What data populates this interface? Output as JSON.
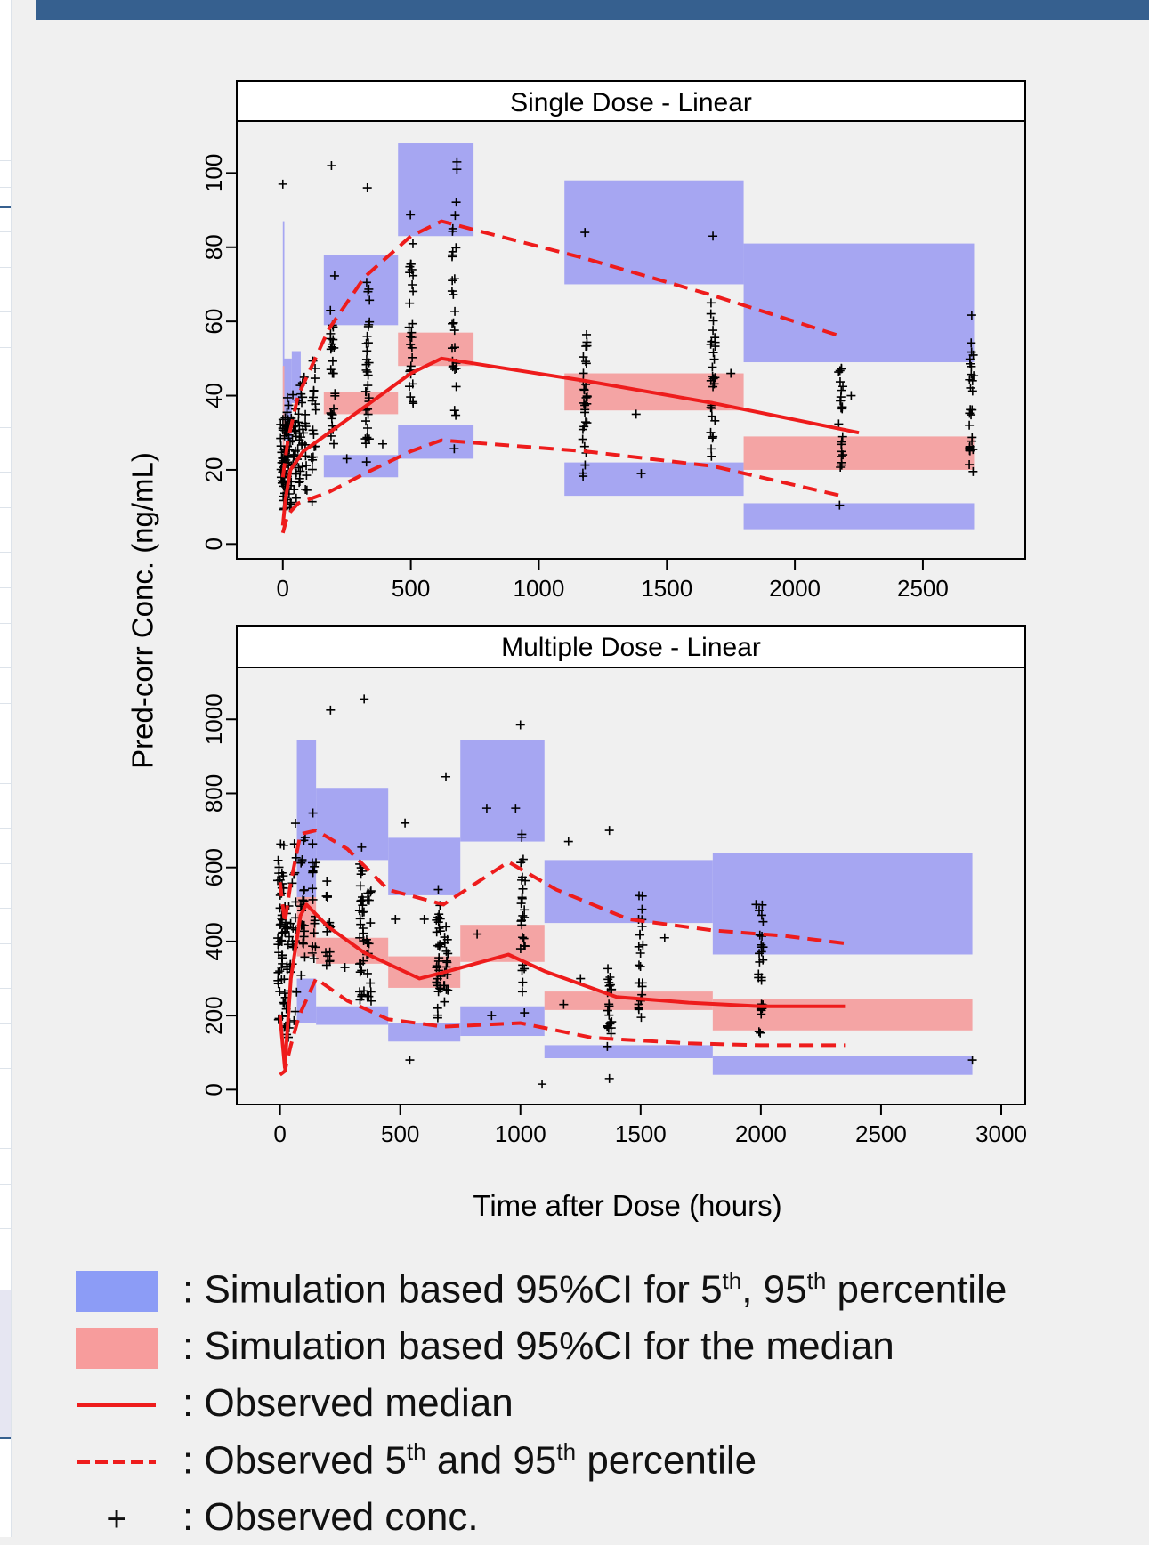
{
  "colors": {
    "pi_band": "#a6a6f2",
    "median_band": "#f4a4a4",
    "observed_line": "#ee1c1c",
    "points": "#000000",
    "legend_pi": "#8c9cf6",
    "legend_median": "#f79c9c",
    "header_bar": "#36608f"
  },
  "chart_data": {
    "type": "scatter",
    "ylabel": "Pred-corr Conc. (ng/mL)",
    "xlabel": "Time after Dose (hours)",
    "panels": [
      {
        "title": "Single Dose - Linear",
        "xlim": [
          -180,
          2900
        ],
        "ylim": [
          -4,
          114
        ],
        "xticks": [
          0,
          500,
          1000,
          1500,
          2000,
          2500
        ],
        "xtick_labels": [
          "0",
          "500",
          "1000",
          "1500",
          "2000",
          "2500"
        ],
        "yticks": [
          0,
          20,
          40,
          60,
          80,
          100
        ],
        "ytick_labels": [
          "0",
          "20",
          "40",
          "60",
          "80",
          "100"
        ],
        "pi_bands": [
          {
            "x": [
              0,
              6
            ],
            "y": [
              20,
              87
            ]
          },
          {
            "x": [
              6,
              35
            ],
            "y": [
              28,
              50
            ]
          },
          {
            "x": [
              35,
              70
            ],
            "y": [
              38,
              52
            ]
          },
          {
            "x": [
              160,
              450
            ],
            "y": [
              59,
              78
            ]
          },
          {
            "x": [
              450,
              745
            ],
            "y": [
              83,
              108
            ]
          },
          {
            "x": [
              1100,
              1800
            ],
            "y": [
              70,
              98
            ]
          },
          {
            "x": [
              1800,
              2700
            ],
            "y": [
              49,
              81
            ]
          },
          {
            "x": [
              160,
              450
            ],
            "y": [
              18,
              24
            ]
          },
          {
            "x": [
              450,
              745
            ],
            "y": [
              23,
              32
            ]
          },
          {
            "x": [
              1100,
              1800
            ],
            "y": [
              13,
              22
            ]
          },
          {
            "x": [
              1800,
              2700
            ],
            "y": [
              4,
              11
            ]
          }
        ],
        "median_bands": [
          {
            "x": [
              0,
              6
            ],
            "y": [
              10,
              48
            ]
          },
          {
            "x": [
              160,
              450
            ],
            "y": [
              35,
              41
            ]
          },
          {
            "x": [
              450,
              745
            ],
            "y": [
              48,
              57
            ]
          },
          {
            "x": [
              1100,
              1800
            ],
            "y": [
              36,
              46
            ]
          },
          {
            "x": [
              1800,
              2700
            ],
            "y": [
              20,
              29
            ]
          }
        ],
        "observed_median": [
          [
            0,
            5
          ],
          [
            10,
            12
          ],
          [
            30,
            20
          ],
          [
            80,
            25
          ],
          [
            180,
            30
          ],
          [
            320,
            37
          ],
          [
            500,
            46
          ],
          [
            620,
            50
          ],
          [
            1180,
            44
          ],
          [
            1680,
            38
          ],
          [
            2250,
            30
          ]
        ],
        "observed_p5": [
          [
            0,
            3
          ],
          [
            20,
            8
          ],
          [
            60,
            11
          ],
          [
            180,
            14
          ],
          [
            320,
            19
          ],
          [
            500,
            25
          ],
          [
            620,
            28
          ],
          [
            1180,
            25
          ],
          [
            1680,
            21
          ],
          [
            2180,
            13
          ]
        ],
        "observed_p95": [
          [
            0,
            18
          ],
          [
            20,
            28
          ],
          [
            60,
            40
          ],
          [
            180,
            58
          ],
          [
            320,
            72
          ],
          [
            500,
            83
          ],
          [
            620,
            87
          ],
          [
            1180,
            77
          ],
          [
            1680,
            67
          ],
          [
            2180,
            56
          ]
        ],
        "obs_columns": [
          {
            "x": 0,
            "n": 28,
            "lo": 2,
            "hi": 40
          },
          {
            "x": 12,
            "n": 22,
            "lo": 4,
            "hi": 46
          },
          {
            "x": 25,
            "n": 22,
            "lo": 5,
            "hi": 43
          },
          {
            "x": 45,
            "n": 20,
            "lo": 7,
            "hi": 45
          },
          {
            "x": 65,
            "n": 18,
            "lo": 8,
            "hi": 47
          },
          {
            "x": 85,
            "n": 16,
            "lo": 9,
            "hi": 50
          },
          {
            "x": 120,
            "n": 18,
            "lo": 10,
            "hi": 58
          },
          {
            "x": 195,
            "n": 26,
            "lo": 13,
            "hi": 78
          },
          {
            "x": 330,
            "n": 32,
            "lo": 11,
            "hi": 78
          },
          {
            "x": 500,
            "n": 28,
            "lo": 21,
            "hi": 96
          },
          {
            "x": 670,
            "n": 28,
            "lo": 20,
            "hi": 102
          },
          {
            "x": 1180,
            "n": 30,
            "lo": 16,
            "hi": 64
          },
          {
            "x": 1680,
            "n": 28,
            "lo": 17,
            "hi": 70
          },
          {
            "x": 2180,
            "n": 24,
            "lo": 9,
            "hi": 59
          },
          {
            "x": 2690,
            "n": 28,
            "lo": 6,
            "hi": 67
          }
        ],
        "obs_extra": [
          [
            0,
            97
          ],
          [
            190,
            102
          ],
          [
            330,
            96
          ],
          [
            680,
            103
          ],
          [
            680,
            101
          ],
          [
            1180,
            84
          ],
          [
            1680,
            83
          ],
          [
            1380,
            35
          ],
          [
            1400,
            19
          ],
          [
            2220,
            40
          ],
          [
            1750,
            46
          ],
          [
            250,
            23
          ],
          [
            390,
            27
          ]
        ]
      },
      {
        "title": "Multiple Dose - Linear",
        "xlim": [
          -180,
          3100
        ],
        "ylim": [
          -40,
          1140
        ],
        "xticks": [
          0,
          500,
          1000,
          1500,
          2000,
          2500,
          3000
        ],
        "xtick_labels": [
          "0",
          "500",
          "1000",
          "1500",
          "2000",
          "2500",
          "3000"
        ],
        "yticks": [
          0,
          200,
          400,
          600,
          800,
          1000
        ],
        "ytick_labels": [
          "0",
          "200",
          "400",
          "600",
          "800",
          "1000"
        ],
        "pi_bands": [
          {
            "x": [
              70,
              150
            ],
            "y": [
              520,
              945
            ]
          },
          {
            "x": [
              150,
              450
            ],
            "y": [
              620,
              815
            ]
          },
          {
            "x": [
              450,
              750
            ],
            "y": [
              525,
              680
            ]
          },
          {
            "x": [
              750,
              1100
            ],
            "y": [
              670,
              945
            ]
          },
          {
            "x": [
              1100,
              1800
            ],
            "y": [
              450,
              620
            ]
          },
          {
            "x": [
              1800,
              2880
            ],
            "y": [
              365,
              640
            ]
          },
          {
            "x": [
              70,
              150
            ],
            "y": [
              180,
              300
            ]
          },
          {
            "x": [
              150,
              450
            ],
            "y": [
              175,
              225
            ]
          },
          {
            "x": [
              450,
              750
            ],
            "y": [
              130,
              180
            ]
          },
          {
            "x": [
              750,
              1100
            ],
            "y": [
              145,
              225
            ]
          },
          {
            "x": [
              1100,
              1800
            ],
            "y": [
              85,
              120
            ]
          },
          {
            "x": [
              1800,
              2880
            ],
            "y": [
              40,
              90
            ]
          }
        ],
        "median_bands": [
          {
            "x": [
              70,
              150
            ],
            "y": [
              360,
              520
            ]
          },
          {
            "x": [
              150,
              450
            ],
            "y": [
              340,
              410
            ]
          },
          {
            "x": [
              450,
              750
            ],
            "y": [
              275,
              360
            ]
          },
          {
            "x": [
              750,
              1100
            ],
            "y": [
              345,
              445
            ]
          },
          {
            "x": [
              1100,
              1800
            ],
            "y": [
              215,
              265
            ]
          },
          {
            "x": [
              1800,
              2880
            ],
            "y": [
              160,
              245
            ]
          }
        ],
        "observed_median": [
          [
            0,
            200
          ],
          [
            20,
            60
          ],
          [
            45,
            300
          ],
          [
            85,
            470
          ],
          [
            110,
            500
          ],
          [
            200,
            440
          ],
          [
            350,
            370
          ],
          [
            580,
            300
          ],
          [
            700,
            320
          ],
          [
            950,
            365
          ],
          [
            1100,
            320
          ],
          [
            1400,
            250
          ],
          [
            1700,
            235
          ],
          [
            2000,
            225
          ],
          [
            2350,
            225
          ]
        ],
        "observed_p5": [
          [
            0,
            40
          ],
          [
            20,
            50
          ],
          [
            45,
            120
          ],
          [
            80,
            200
          ],
          [
            150,
            300
          ],
          [
            280,
            240
          ],
          [
            450,
            190
          ],
          [
            680,
            170
          ],
          [
            1000,
            180
          ],
          [
            1300,
            140
          ],
          [
            1700,
            125
          ],
          [
            2000,
            120
          ],
          [
            2350,
            120
          ]
        ],
        "observed_p95": [
          [
            0,
            560
          ],
          [
            20,
            450
          ],
          [
            45,
            560
          ],
          [
            85,
            690
          ],
          [
            150,
            700
          ],
          [
            280,
            650
          ],
          [
            450,
            540
          ],
          [
            680,
            500
          ],
          [
            950,
            615
          ],
          [
            1150,
            540
          ],
          [
            1450,
            460
          ],
          [
            1800,
            430
          ],
          [
            2100,
            415
          ],
          [
            2350,
            395
          ]
        ],
        "obs_columns": [
          {
            "x": 0,
            "n": 30,
            "lo": 25,
            "hi": 820
          },
          {
            "x": 15,
            "n": 26,
            "lo": 40,
            "hi": 760
          },
          {
            "x": 35,
            "n": 20,
            "lo": 60,
            "hi": 600
          },
          {
            "x": 60,
            "n": 18,
            "lo": 120,
            "hi": 780
          },
          {
            "x": 95,
            "n": 22,
            "lo": 240,
            "hi": 720
          },
          {
            "x": 140,
            "n": 18,
            "lo": 250,
            "hi": 800
          },
          {
            "x": 200,
            "n": 16,
            "lo": 270,
            "hi": 620
          },
          {
            "x": 340,
            "n": 30,
            "lo": 130,
            "hi": 730
          },
          {
            "x": 370,
            "n": 18,
            "lo": 150,
            "hi": 640
          },
          {
            "x": 660,
            "n": 30,
            "lo": 80,
            "hi": 660
          },
          {
            "x": 690,
            "n": 16,
            "lo": 150,
            "hi": 500
          },
          {
            "x": 1010,
            "n": 28,
            "lo": 150,
            "hi": 760
          },
          {
            "x": 1370,
            "n": 22,
            "lo": 90,
            "hi": 350
          },
          {
            "x": 1500,
            "n": 24,
            "lo": 130,
            "hi": 570
          },
          {
            "x": 2000,
            "n": 26,
            "lo": 80,
            "hi": 570
          }
        ],
        "obs_extra": [
          [
            210,
            1025
          ],
          [
            350,
            1055
          ],
          [
            1000,
            985
          ],
          [
            690,
            845
          ],
          [
            860,
            760
          ],
          [
            980,
            760
          ],
          [
            1370,
            700
          ],
          [
            1200,
            670
          ],
          [
            520,
            720
          ],
          [
            1090,
            15
          ],
          [
            1370,
            30
          ],
          [
            540,
            80
          ],
          [
            2880,
            80
          ],
          [
            480,
            460
          ],
          [
            820,
            420
          ],
          [
            1250,
            300
          ],
          [
            1180,
            230
          ],
          [
            270,
            330
          ],
          [
            600,
            460
          ],
          [
            880,
            200
          ],
          [
            1600,
            410
          ],
          [
            1980,
            500
          ]
        ]
      }
    ]
  },
  "legend": {
    "items": [
      {
        "key": "pi_band",
        "prefix": ": Simulation based 95%CI for 5",
        "sup1": "th",
        "mid": ", 95",
        "sup2": "th",
        "suffix": " percentile"
      },
      {
        "key": "median_band",
        "text": ": Simulation based 95%CI for the median"
      },
      {
        "key": "observed_median",
        "text": ": Observed median"
      },
      {
        "key": "observed_pct",
        "prefix": ": Observed 5",
        "sup1": "th",
        "mid": " and 95",
        "sup2": "th",
        "suffix": " percentile"
      },
      {
        "key": "observed_conc",
        "symbol": "+",
        "text": ": Observed conc."
      }
    ]
  }
}
